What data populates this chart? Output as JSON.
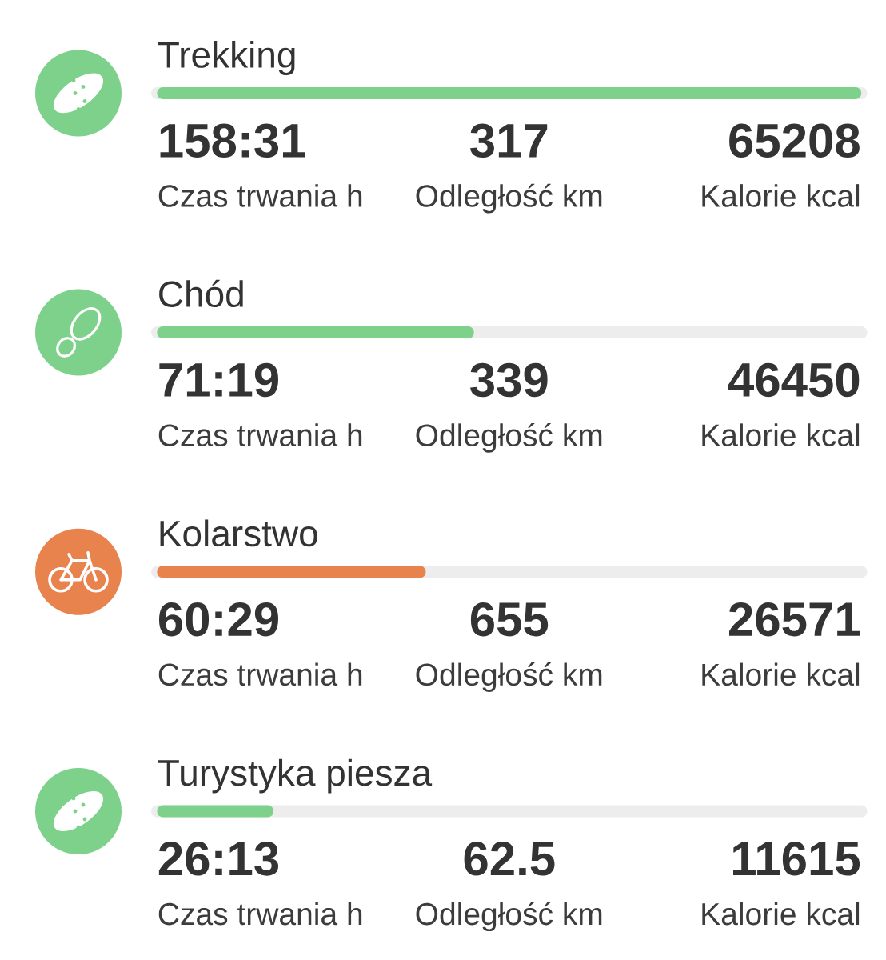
{
  "chart_data": {
    "type": "bar",
    "orientation": "horizontal",
    "categories": [
      "Trekking",
      "Chód",
      "Kolarstwo",
      "Turystyka piesza"
    ],
    "values": [
      158.52,
      71.32,
      60.48,
      26.22
    ],
    "xlim": [
      0,
      158.52
    ],
    "tick_labels": "y",
    "colors": [
      "#7dd18a",
      "#7dd18a",
      "#e8834e",
      "#7dd18a"
    ],
    "value_labels": [
      "158:31",
      "71:19",
      "60:29",
      "26:13"
    ],
    "annotations": [
      "317",
      "65208",
      "Czas trwania h",
      "Odległość km",
      "Kalorie kcal",
      "339",
      "46450",
      "Czas trwania h",
      "Odległość km",
      "Kalorie kcal",
      "655",
      "26571",
      "Czas trwania h",
      "Odległość km",
      "Kalorie kcal",
      "62.5",
      "11615",
      "Czas trwania h",
      "Odległość km",
      "Kalorie kcal"
    ]
  }
}
